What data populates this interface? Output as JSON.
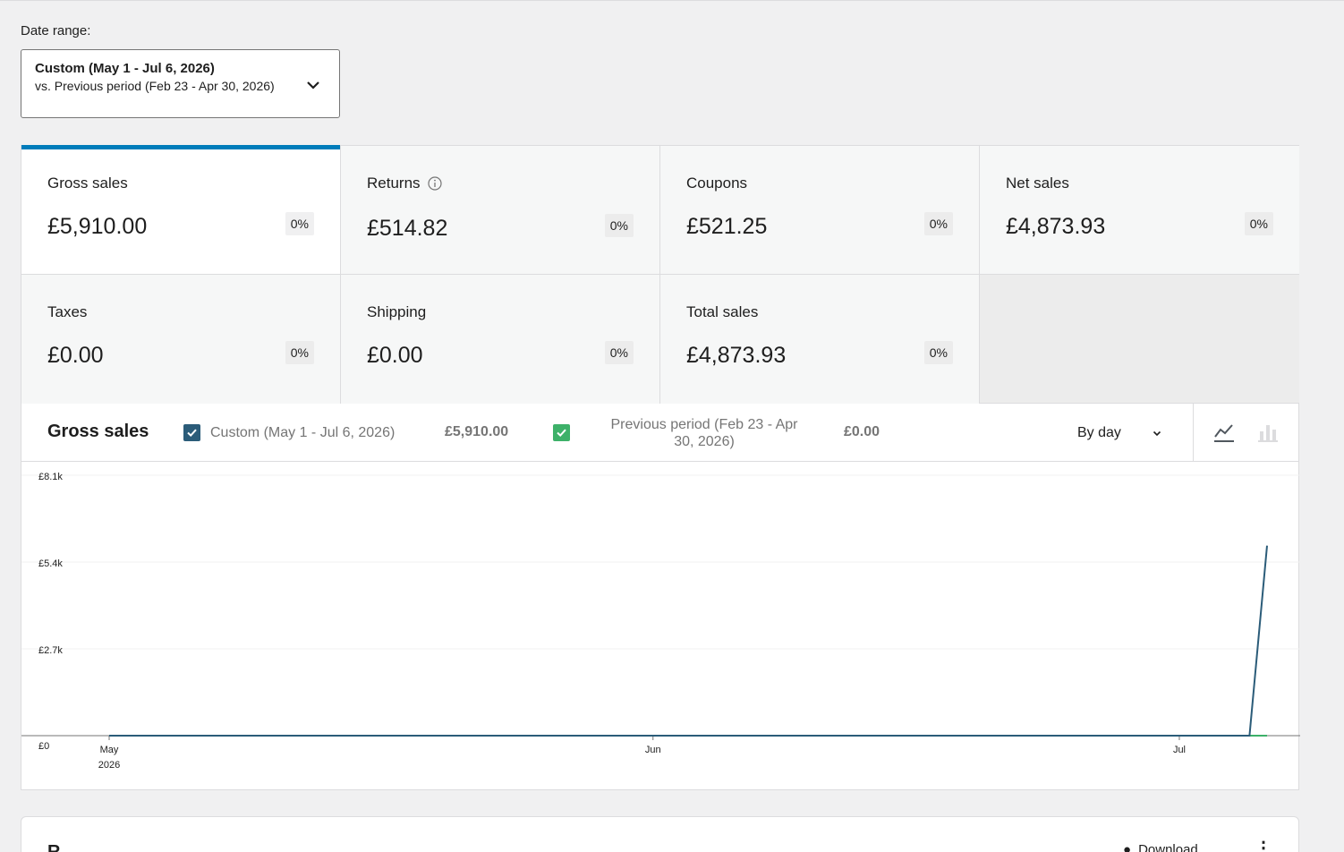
{
  "date_range": {
    "label": "Date range:",
    "primary": "Custom (May 1 - Jul 6, 2026)",
    "secondary": "vs. Previous period (Feb 23 - Apr 30, 2026)",
    "icon": "chevron-down-icon"
  },
  "tiles": [
    {
      "label": "Gross sales",
      "value": "£5,910.00",
      "delta": "0%",
      "selected": true
    },
    {
      "label": "Returns",
      "value": "£514.82",
      "delta": "0%",
      "info_icon": "info-icon"
    },
    {
      "label": "Coupons",
      "value": "£521.25",
      "delta": "0%"
    },
    {
      "label": "Net sales",
      "value": "£4,873.93",
      "delta": "0%"
    },
    {
      "label": "Taxes",
      "value": "£0.00",
      "delta": "0%"
    },
    {
      "label": "Shipping",
      "value": "£0.00",
      "delta": "0%"
    },
    {
      "label": "Total sales",
      "value": "£4,873.93",
      "delta": "0%"
    }
  ],
  "chart": {
    "title": "Gross sales",
    "legend": [
      {
        "label": "Custom (May 1 - Jul 6, 2026)",
        "total": "£5,910.00",
        "color": "#2b5c79"
      },
      {
        "label": "Previous period (Feb 23 - Apr 30, 2026)",
        "total": "£0.00",
        "color": "#3db169"
      }
    ],
    "interval": "By day",
    "type_icons": [
      "line-chart-icon",
      "bar-chart-icon"
    ]
  },
  "chart_data": {
    "type": "line",
    "y_ticks": [
      "£8.1k",
      "£5.4k",
      "£2.7k",
      "£0"
    ],
    "ylim": [
      0,
      8100
    ],
    "x_ticks": [
      {
        "label": "May",
        "sub": "2026",
        "day": 0
      },
      {
        "label": "Jun",
        "sub": "",
        "day": 31
      },
      {
        "label": "Jul",
        "sub": "",
        "day": 61
      }
    ],
    "x_days": 66,
    "series": [
      {
        "name": "Custom (May 1 - Jul 6, 2026)",
        "color": "#2b5c79",
        "points": [
          [
            0,
            0
          ],
          [
            65,
            0
          ],
          [
            66,
            5910
          ]
        ]
      },
      {
        "name": "Previous period (Feb 23 - Apr 30, 2026)",
        "color": "#3db169",
        "points": [
          [
            65,
            0
          ],
          [
            66,
            0
          ]
        ]
      }
    ]
  },
  "bottom_card": {
    "title": "R",
    "download": "Download",
    "more": "⋮"
  }
}
